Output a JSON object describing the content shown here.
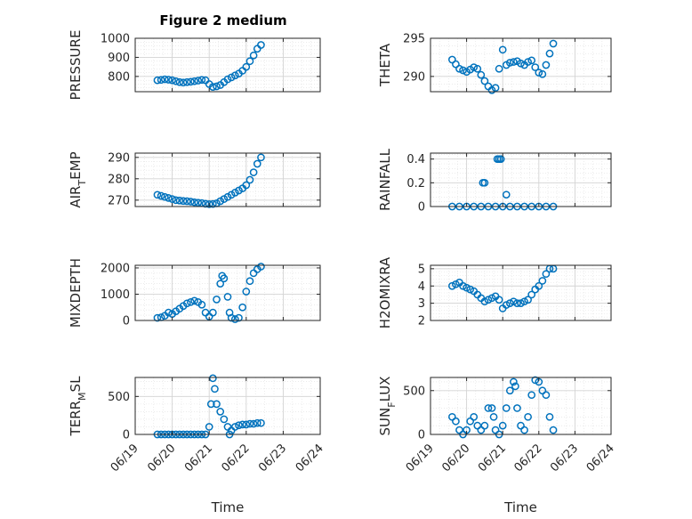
{
  "figure": {
    "title": "Figure 2 medium",
    "x_axis_label": "Time",
    "x_tick_labels": [
      "06/19",
      "06/20",
      "06/21",
      "06/22",
      "06/23",
      "06/24"
    ]
  },
  "chart_data": [
    {
      "type": "scatter",
      "ylabel": "PRESSURE",
      "title": "Figure 2 medium",
      "x_ticks": [
        "06/19",
        "06/20",
        "06/21",
        "06/22",
        "06/23",
        "06/24"
      ],
      "xlim": [
        "06/19",
        "06/24"
      ],
      "ylim": [
        720,
        1000
      ],
      "y_ticks": [
        800,
        900,
        1000
      ],
      "marker": "o",
      "color": "#0072BD",
      "grid": "major-and-minor",
      "points": [
        [
          0.6,
          780
        ],
        [
          0.7,
          782
        ],
        [
          0.8,
          785
        ],
        [
          0.9,
          783
        ],
        [
          1.0,
          780
        ],
        [
          1.1,
          775
        ],
        [
          1.2,
          770
        ],
        [
          1.3,
          768
        ],
        [
          1.4,
          770
        ],
        [
          1.5,
          772
        ],
        [
          1.6,
          775
        ],
        [
          1.7,
          778
        ],
        [
          1.8,
          782
        ],
        [
          1.9,
          780
        ],
        [
          2.0,
          760
        ],
        [
          2.1,
          745
        ],
        [
          2.2,
          748
        ],
        [
          2.3,
          755
        ],
        [
          2.4,
          770
        ],
        [
          2.5,
          785
        ],
        [
          2.6,
          795
        ],
        [
          2.7,
          805
        ],
        [
          2.8,
          815
        ],
        [
          2.9,
          830
        ],
        [
          3.0,
          850
        ],
        [
          3.1,
          880
        ],
        [
          3.2,
          910
        ],
        [
          3.3,
          945
        ],
        [
          3.4,
          965
        ]
      ]
    },
    {
      "type": "scatter",
      "ylabel": "THETA",
      "x_ticks": [
        "06/19",
        "06/20",
        "06/21",
        "06/22",
        "06/23",
        "06/24"
      ],
      "xlim": [
        "06/19",
        "06/24"
      ],
      "ylim": [
        288,
        295
      ],
      "y_ticks": [
        290,
        295
      ],
      "marker": "o",
      "color": "#0072BD",
      "grid": "major-and-minor",
      "points": [
        [
          0.6,
          292.2
        ],
        [
          0.7,
          291.6
        ],
        [
          0.8,
          291.0
        ],
        [
          0.9,
          290.8
        ],
        [
          1.0,
          290.6
        ],
        [
          1.1,
          290.9
        ],
        [
          1.2,
          291.2
        ],
        [
          1.3,
          291.0
        ],
        [
          1.4,
          290.2
        ],
        [
          1.5,
          289.4
        ],
        [
          1.6,
          288.7
        ],
        [
          1.7,
          288.2
        ],
        [
          1.8,
          288.5
        ],
        [
          1.9,
          291.0
        ],
        [
          2.0,
          293.5
        ],
        [
          2.1,
          291.5
        ],
        [
          2.2,
          291.8
        ],
        [
          2.3,
          291.9
        ],
        [
          2.4,
          292.0
        ],
        [
          2.5,
          291.7
        ],
        [
          2.6,
          291.5
        ],
        [
          2.7,
          291.9
        ],
        [
          2.8,
          292.1
        ],
        [
          2.9,
          291.2
        ],
        [
          3.0,
          290.5
        ],
        [
          3.1,
          290.3
        ],
        [
          3.2,
          291.5
        ],
        [
          3.3,
          293.0
        ],
        [
          3.4,
          294.3
        ]
      ]
    },
    {
      "type": "scatter",
      "ylabel": "AIR_TEMP",
      "ylabel_main": "AIR",
      "ylabel_sub": "T",
      "ylabel_rest": "EMP",
      "x_ticks": [
        "06/19",
        "06/20",
        "06/21",
        "06/22",
        "06/23",
        "06/24"
      ],
      "xlim": [
        "06/19",
        "06/24"
      ],
      "ylim": [
        267,
        292
      ],
      "y_ticks": [
        270,
        280,
        290
      ],
      "marker": "o",
      "color": "#0072BD",
      "grid": "major-and-minor",
      "points": [
        [
          0.6,
          272.5
        ],
        [
          0.7,
          272.0
        ],
        [
          0.8,
          271.5
        ],
        [
          0.9,
          271.0
        ],
        [
          1.0,
          270.5
        ],
        [
          1.1,
          270.0
        ],
        [
          1.2,
          269.8
        ],
        [
          1.3,
          269.6
        ],
        [
          1.4,
          269.5
        ],
        [
          1.5,
          269.3
        ],
        [
          1.6,
          269.0
        ],
        [
          1.7,
          268.8
        ],
        [
          1.8,
          268.6
        ],
        [
          1.9,
          268.3
        ],
        [
          2.0,
          268.1
        ],
        [
          2.1,
          268.2
        ],
        [
          2.2,
          268.5
        ],
        [
          2.3,
          269.5
        ],
        [
          2.4,
          270.5
        ],
        [
          2.5,
          271.5
        ],
        [
          2.6,
          272.5
        ],
        [
          2.7,
          273.5
        ],
        [
          2.8,
          274.5
        ],
        [
          2.9,
          275.5
        ],
        [
          3.0,
          277.0
        ],
        [
          3.1,
          279.5
        ],
        [
          3.2,
          283.0
        ],
        [
          3.3,
          287.0
        ],
        [
          3.4,
          290.0
        ]
      ]
    },
    {
      "type": "scatter",
      "ylabel": "RAINFALL",
      "x_ticks": [
        "06/19",
        "06/20",
        "06/21",
        "06/22",
        "06/23",
        "06/24"
      ],
      "xlim": [
        "06/19",
        "06/24"
      ],
      "ylim": [
        0,
        0.45
      ],
      "y_ticks": [
        0,
        0.2,
        0.4
      ],
      "y_tick_labels": [
        "0",
        "0.2",
        "0.4"
      ],
      "marker": "o",
      "color": "#0072BD",
      "grid": "major-and-minor",
      "points": [
        [
          0.6,
          0
        ],
        [
          0.8,
          0
        ],
        [
          1.0,
          0
        ],
        [
          1.2,
          0
        ],
        [
          1.4,
          0
        ],
        [
          1.45,
          0.2
        ],
        [
          1.5,
          0.2
        ],
        [
          1.6,
          0
        ],
        [
          1.8,
          0
        ],
        [
          1.85,
          0.4
        ],
        [
          1.9,
          0.4
        ],
        [
          1.95,
          0.4
        ],
        [
          2.0,
          0
        ],
        [
          2.1,
          0.1
        ],
        [
          2.2,
          0
        ],
        [
          2.4,
          0
        ],
        [
          2.6,
          0
        ],
        [
          2.8,
          0
        ],
        [
          3.0,
          0
        ],
        [
          3.2,
          0
        ],
        [
          3.4,
          0
        ]
      ]
    },
    {
      "type": "scatter",
      "ylabel": "MIXDEPTH",
      "x_ticks": [
        "06/19",
        "06/20",
        "06/21",
        "06/22",
        "06/23",
        "06/24"
      ],
      "xlim": [
        "06/19",
        "06/24"
      ],
      "ylim": [
        0,
        2100
      ],
      "y_ticks": [
        0,
        1000,
        2000
      ],
      "marker": "o",
      "color": "#0072BD",
      "grid": "major-and-minor",
      "points": [
        [
          0.6,
          100
        ],
        [
          0.7,
          120
        ],
        [
          0.8,
          180
        ],
        [
          0.9,
          300
        ],
        [
          1.0,
          250
        ],
        [
          1.1,
          350
        ],
        [
          1.2,
          450
        ],
        [
          1.3,
          550
        ],
        [
          1.4,
          650
        ],
        [
          1.5,
          700
        ],
        [
          1.6,
          750
        ],
        [
          1.7,
          700
        ],
        [
          1.8,
          600
        ],
        [
          1.9,
          300
        ],
        [
          2.0,
          150
        ],
        [
          2.1,
          300
        ],
        [
          2.2,
          800
        ],
        [
          2.3,
          1400
        ],
        [
          2.35,
          1700
        ],
        [
          2.4,
          1600
        ],
        [
          2.5,
          900
        ],
        [
          2.55,
          300
        ],
        [
          2.6,
          100
        ],
        [
          2.7,
          50
        ],
        [
          2.8,
          100
        ],
        [
          2.9,
          500
        ],
        [
          3.0,
          1100
        ],
        [
          3.1,
          1500
        ],
        [
          3.2,
          1800
        ],
        [
          3.3,
          1950
        ],
        [
          3.4,
          2050
        ]
      ]
    },
    {
      "type": "scatter",
      "ylabel": "H2OMIXRA",
      "x_ticks": [
        "06/19",
        "06/20",
        "06/21",
        "06/22",
        "06/23",
        "06/24"
      ],
      "xlim": [
        "06/19",
        "06/24"
      ],
      "ylim": [
        2,
        5.2
      ],
      "y_ticks": [
        2,
        3,
        4,
        5
      ],
      "marker": "o",
      "color": "#0072BD",
      "grid": "major-and-minor",
      "points": [
        [
          0.6,
          4.0
        ],
        [
          0.7,
          4.1
        ],
        [
          0.8,
          4.2
        ],
        [
          0.9,
          4.0
        ],
        [
          1.0,
          3.9
        ],
        [
          1.1,
          3.8
        ],
        [
          1.2,
          3.7
        ],
        [
          1.3,
          3.5
        ],
        [
          1.4,
          3.3
        ],
        [
          1.5,
          3.1
        ],
        [
          1.6,
          3.2
        ],
        [
          1.7,
          3.3
        ],
        [
          1.8,
          3.4
        ],
        [
          1.9,
          3.2
        ],
        [
          2.0,
          2.7
        ],
        [
          2.1,
          2.9
        ],
        [
          2.2,
          3.0
        ],
        [
          2.3,
          3.1
        ],
        [
          2.4,
          3.0
        ],
        [
          2.5,
          3.0
        ],
        [
          2.6,
          3.1
        ],
        [
          2.7,
          3.2
        ],
        [
          2.8,
          3.5
        ],
        [
          2.9,
          3.8
        ],
        [
          3.0,
          4.0
        ],
        [
          3.1,
          4.3
        ],
        [
          3.2,
          4.7
        ],
        [
          3.3,
          5.0
        ],
        [
          3.4,
          5.0
        ]
      ]
    },
    {
      "type": "scatter",
      "ylabel": "TERR_MSL",
      "ylabel_main": "TERR",
      "ylabel_sub": "M",
      "ylabel_rest": "SL",
      "x_ticks": [
        "06/19",
        "06/20",
        "06/21",
        "06/22",
        "06/23",
        "06/24"
      ],
      "xlim": [
        "06/19",
        "06/24"
      ],
      "ylim": [
        0,
        750
      ],
      "y_ticks": [
        0,
        500
      ],
      "marker": "o",
      "color": "#0072BD",
      "grid": "major-and-minor",
      "points": [
        [
          0.6,
          0
        ],
        [
          0.7,
          0
        ],
        [
          0.8,
          0
        ],
        [
          0.9,
          0
        ],
        [
          1.0,
          0
        ],
        [
          1.1,
          0
        ],
        [
          1.2,
          0
        ],
        [
          1.3,
          0
        ],
        [
          1.4,
          0
        ],
        [
          1.5,
          0
        ],
        [
          1.6,
          0
        ],
        [
          1.7,
          0
        ],
        [
          1.8,
          0
        ],
        [
          1.9,
          0
        ],
        [
          2.0,
          100
        ],
        [
          2.05,
          400
        ],
        [
          2.1,
          740
        ],
        [
          2.15,
          600
        ],
        [
          2.2,
          400
        ],
        [
          2.3,
          300
        ],
        [
          2.4,
          200
        ],
        [
          2.5,
          100
        ],
        [
          2.55,
          0
        ],
        [
          2.6,
          50
        ],
        [
          2.7,
          100
        ],
        [
          2.8,
          120
        ],
        [
          2.9,
          130
        ],
        [
          3.0,
          130
        ],
        [
          3.1,
          140
        ],
        [
          3.2,
          140
        ],
        [
          3.3,
          150
        ],
        [
          3.4,
          150
        ]
      ]
    },
    {
      "type": "scatter",
      "ylabel": "SUN_FLUX",
      "ylabel_main": "SUN",
      "ylabel_sub": "F",
      "ylabel_rest": "LUX",
      "x_ticks": [
        "06/19",
        "06/20",
        "06/21",
        "06/22",
        "06/23",
        "06/24"
      ],
      "xlim": [
        "06/19",
        "06/24"
      ],
      "ylim": [
        0,
        650
      ],
      "y_ticks": [
        0,
        500
      ],
      "marker": "o",
      "color": "#0072BD",
      "grid": "major-and-minor",
      "points": [
        [
          0.6,
          200
        ],
        [
          0.7,
          150
        ],
        [
          0.8,
          50
        ],
        [
          0.9,
          0
        ],
        [
          1.0,
          50
        ],
        [
          1.1,
          150
        ],
        [
          1.2,
          200
        ],
        [
          1.3,
          100
        ],
        [
          1.4,
          50
        ],
        [
          1.5,
          100
        ],
        [
          1.6,
          300
        ],
        [
          1.7,
          300
        ],
        [
          1.75,
          200
        ],
        [
          1.8,
          50
        ],
        [
          1.9,
          0
        ],
        [
          2.0,
          100
        ],
        [
          2.1,
          300
        ],
        [
          2.2,
          500
        ],
        [
          2.3,
          600
        ],
        [
          2.35,
          550
        ],
        [
          2.4,
          300
        ],
        [
          2.5,
          100
        ],
        [
          2.6,
          50
        ],
        [
          2.7,
          200
        ],
        [
          2.8,
          450
        ],
        [
          2.9,
          620
        ],
        [
          3.0,
          600
        ],
        [
          3.1,
          500
        ],
        [
          3.2,
          450
        ],
        [
          3.3,
          200
        ],
        [
          3.4,
          50
        ]
      ]
    }
  ]
}
